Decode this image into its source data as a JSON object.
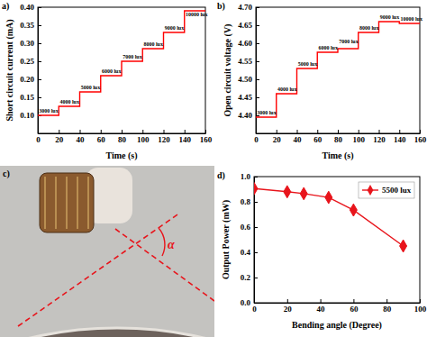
{
  "chart_data": [
    {
      "type": "step",
      "title": "a)",
      "xlabel": "Time (s)",
      "ylabel": "Short circuit current (mA)",
      "x": [
        0,
        20,
        40,
        60,
        80,
        100,
        120,
        140,
        160
      ],
      "series": [
        {
          "color": "#ff0000",
          "line_style": "solid",
          "values": [
            0.1,
            0.125,
            0.165,
            0.21,
            0.25,
            0.285,
            0.33,
            0.39,
            0.39
          ]
        }
      ],
      "xlim": [
        0,
        160
      ],
      "xticks": [
        0,
        20,
        40,
        60,
        80,
        100,
        120,
        140,
        160
      ],
      "ylim": [
        0.05,
        0.4
      ],
      "yticks": [
        {
          "value": 0.1,
          "label": "0.10"
        },
        0.15,
        {
          "value": 0.2,
          "label": "0.20"
        },
        0.25,
        {
          "value": 0.3,
          "label": "0.30"
        },
        0.35,
        {
          "value": 0.4,
          "label": "0.40"
        }
      ],
      "grid": false,
      "annotations": [
        {
          "text": "3000 lux",
          "x": 1,
          "y": 0.108
        },
        {
          "text": "4000 lux",
          "x": 21,
          "y": 0.133
        },
        {
          "text": "5000 lux",
          "x": 41,
          "y": 0.173
        },
        {
          "text": "6000 lux",
          "x": 61,
          "y": 0.218
        },
        {
          "text": "7000 lux",
          "x": 81,
          "y": 0.258
        },
        {
          "text": "8000 lux",
          "x": 101,
          "y": 0.293
        },
        {
          "text": "9000 lux",
          "x": 121,
          "y": 0.338
        },
        {
          "text": "10000 lux",
          "x": 141,
          "y": 0.375
        }
      ]
    },
    {
      "type": "step",
      "title": "b)",
      "xlabel": "Time (s)",
      "ylabel": "Open circuit voltage (V)",
      "x": [
        0,
        20,
        40,
        60,
        80,
        100,
        120,
        140,
        160
      ],
      "series": [
        {
          "color": "#ff0000",
          "line_style": "solid",
          "values": [
            4.395,
            4.46,
            4.53,
            4.575,
            4.585,
            4.63,
            4.66,
            4.655,
            4.655
          ]
        }
      ],
      "xlim": [
        0,
        160
      ],
      "xticks": [
        0,
        20,
        40,
        60,
        80,
        100,
        120,
        140,
        160
      ],
      "ylim": [
        4.35,
        4.7
      ],
      "yticks": [
        {
          "value": 4.4,
          "label": "4.40"
        },
        4.45,
        {
          "value": 4.5,
          "label": "4.50"
        },
        4.55,
        {
          "value": 4.6,
          "label": "4.60"
        },
        4.65,
        {
          "value": 4.7,
          "label": "4.70"
        }
      ],
      "grid": false,
      "annotations": [
        {
          "text": "3000 lux",
          "x": 1,
          "y": 4.403
        },
        {
          "text": "4000 lux",
          "x": 21,
          "y": 4.468
        },
        {
          "text": "5000 lux",
          "x": 41,
          "y": 4.538
        },
        {
          "text": "6000 lux",
          "x": 61,
          "y": 4.583
        },
        {
          "text": "7000 lux",
          "x": 81,
          "y": 4.6
        },
        {
          "text": "8000 lux",
          "x": 101,
          "y": 4.638
        },
        {
          "text": "9000 lux",
          "x": 121,
          "y": 4.668
        },
        {
          "text": "10000 lux",
          "x": 141,
          "y": 4.663
        }
      ]
    },
    {
      "type": "image",
      "title": "c)",
      "annotations": [
        {
          "text": "α"
        }
      ]
    },
    {
      "type": "line",
      "title": "d)",
      "xlabel": "Bending angle (Degree)",
      "ylabel": "Output Power (mW)",
      "x": [
        0,
        20,
        30,
        45,
        60,
        90
      ],
      "series": [
        {
          "name": "5500 lux",
          "color": "#e8141b",
          "marker": "diamond",
          "line_style": "solid",
          "values": [
            0.905,
            0.88,
            0.865,
            0.835,
            0.735,
            0.45
          ]
        }
      ],
      "xlim": [
        0,
        100
      ],
      "xticks": [
        0,
        20,
        40,
        60,
        80,
        100
      ],
      "ylim": [
        0,
        1.0
      ],
      "yticks": [
        {
          "value": 0,
          "label": "0.0"
        },
        0.2,
        0.4,
        0.6,
        0.8,
        {
          "value": 1.0,
          "label": "1.0"
        }
      ],
      "grid": false,
      "legend": "upper right"
    }
  ]
}
